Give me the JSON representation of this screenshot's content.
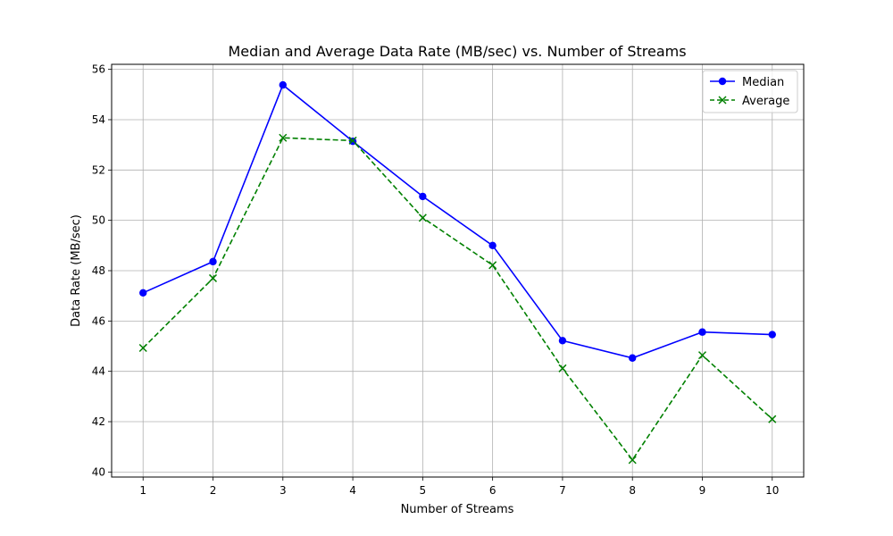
{
  "chart_data": {
    "type": "line",
    "title": "Median and Average Data Rate (MB/sec) vs. Number of Streams",
    "xlabel": "Number of Streams",
    "ylabel": "Data Rate (MB/sec)",
    "x": [
      1,
      2,
      3,
      4,
      5,
      6,
      7,
      8,
      9,
      10
    ],
    "xticks": [
      "1",
      "2",
      "3",
      "4",
      "5",
      "6",
      "7",
      "8",
      "9",
      "10"
    ],
    "yticks": [
      "40",
      "42",
      "44",
      "46",
      "48",
      "50",
      "52",
      "54",
      "56"
    ],
    "ylim": [
      39.8,
      56.2
    ],
    "xlim": [
      0.55,
      10.45
    ],
    "grid": true,
    "legend_position": "top-right",
    "series": [
      {
        "name": "Median",
        "values": [
          47.12,
          48.36,
          55.38,
          53.14,
          50.95,
          49.0,
          45.22,
          44.53,
          45.56,
          45.46
        ],
        "color": "#0000ff",
        "line_style": "solid",
        "marker": "circle"
      },
      {
        "name": "Average",
        "values": [
          44.93,
          47.7,
          53.28,
          53.17,
          50.1,
          48.22,
          44.12,
          40.48,
          44.64,
          42.1
        ],
        "color": "#008000",
        "line_style": "dashed",
        "marker": "x"
      }
    ]
  }
}
